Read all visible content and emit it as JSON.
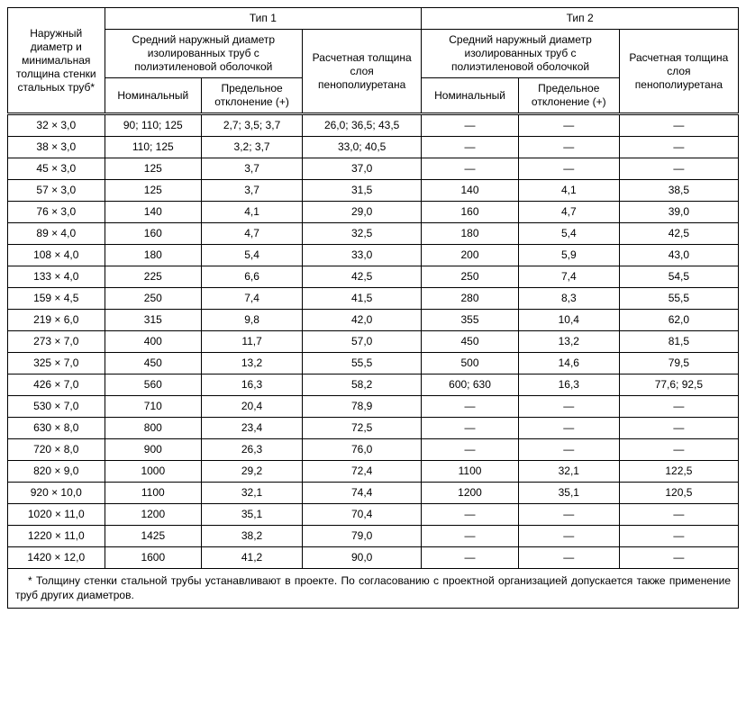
{
  "colors": {
    "background": "#ffffff",
    "text": "#000000",
    "border": "#000000"
  },
  "typography": {
    "font_family": "Arial, sans-serif",
    "font_size_pt": 9
  },
  "header": {
    "row_label": "Наружный диаметр и минимальная толщина стенки стальных труб*",
    "type1": "Тип 1",
    "type2": "Тип 2",
    "group_label": "Средний наружный диаметр изолированных труб с полиэтиленовой оболочкой",
    "thickness_label": "Расчетная толщина слоя пенополиуретана",
    "nominal": "Номинальный",
    "deviation": "Предельное отклонение (+)"
  },
  "rows": [
    {
      "c0": "32 × 3,0",
      "c1": "90; 110; 125",
      "c2": "2,7; 3,5; 3,7",
      "c3": "26,0; 36,5; 43,5",
      "c4": "—",
      "c5": "—",
      "c6": "—"
    },
    {
      "c0": "38 × 3,0",
      "c1": "110; 125",
      "c2": "3,2; 3,7",
      "c3": "33,0; 40,5",
      "c4": "—",
      "c5": "—",
      "c6": "—"
    },
    {
      "c0": "45 × 3,0",
      "c1": "125",
      "c2": "3,7",
      "c3": "37,0",
      "c4": "—",
      "c5": "—",
      "c6": "—"
    },
    {
      "c0": "57 × 3,0",
      "c1": "125",
      "c2": "3,7",
      "c3": "31,5",
      "c4": "140",
      "c5": "4,1",
      "c6": "38,5"
    },
    {
      "c0": "76 × 3,0",
      "c1": "140",
      "c2": "4,1",
      "c3": "29,0",
      "c4": "160",
      "c5": "4,7",
      "c6": "39,0"
    },
    {
      "c0": "89 × 4,0",
      "c1": "160",
      "c2": "4,7",
      "c3": "32,5",
      "c4": "180",
      "c5": "5,4",
      "c6": "42,5"
    },
    {
      "c0": "108 × 4,0",
      "c1": "180",
      "c2": "5,4",
      "c3": "33,0",
      "c4": "200",
      "c5": "5,9",
      "c6": "43,0"
    },
    {
      "c0": "133 × 4,0",
      "c1": "225",
      "c2": "6,6",
      "c3": "42,5",
      "c4": "250",
      "c5": "7,4",
      "c6": "54,5"
    },
    {
      "c0": "159 × 4,5",
      "c1": "250",
      "c2": "7,4",
      "c3": "41,5",
      "c4": "280",
      "c5": "8,3",
      "c6": "55,5"
    },
    {
      "c0": "219 × 6,0",
      "c1": "315",
      "c2": "9,8",
      "c3": "42,0",
      "c4": "355",
      "c5": "10,4",
      "c6": "62,0"
    },
    {
      "c0": "273 × 7,0",
      "c1": "400",
      "c2": "11,7",
      "c3": "57,0",
      "c4": "450",
      "c5": "13,2",
      "c6": "81,5"
    },
    {
      "c0": "325 × 7,0",
      "c1": "450",
      "c2": "13,2",
      "c3": "55,5",
      "c4": "500",
      "c5": "14,6",
      "c6": "79,5"
    },
    {
      "c0": "426 × 7,0",
      "c1": "560",
      "c2": "16,3",
      "c3": "58,2",
      "c4": "600; 630",
      "c5": "16,3",
      "c6": "77,6; 92,5"
    },
    {
      "c0": "530 × 7,0",
      "c1": "710",
      "c2": "20,4",
      "c3": "78,9",
      "c4": "—",
      "c5": "—",
      "c6": "—"
    },
    {
      "c0": "630 × 8,0",
      "c1": "800",
      "c2": "23,4",
      "c3": "72,5",
      "c4": "—",
      "c5": "—",
      "c6": "—"
    },
    {
      "c0": "720 × 8,0",
      "c1": "900",
      "c2": "26,3",
      "c3": "76,0",
      "c4": "—",
      "c5": "—",
      "c6": "—"
    },
    {
      "c0": "820 × 9,0",
      "c1": "1000",
      "c2": "29,2",
      "c3": "72,4",
      "c4": "1100",
      "c5": "32,1",
      "c6": "122,5"
    },
    {
      "c0": "920 × 10,0",
      "c1": "1100",
      "c2": "32,1",
      "c3": "74,4",
      "c4": "1200",
      "c5": "35,1",
      "c6": "120,5"
    },
    {
      "c0": "1020 × 11,0",
      "c1": "1200",
      "c2": "35,1",
      "c3": "70,4",
      "c4": "—",
      "c5": "—",
      "c6": "—"
    },
    {
      "c0": "1220 × 11,0",
      "c1": "1425",
      "c2": "38,2",
      "c3": "79,0",
      "c4": "—",
      "c5": "—",
      "c6": "—"
    },
    {
      "c0": "1420 × 12,0",
      "c1": "1600",
      "c2": "41,2",
      "c3": "90,0",
      "c4": "—",
      "c5": "—",
      "c6": "—"
    }
  ],
  "footnote": "* Толщину стенки стальной трубы устанавливают в проекте. По согласованию с проектной организацией допускается также применение труб других диаметров."
}
